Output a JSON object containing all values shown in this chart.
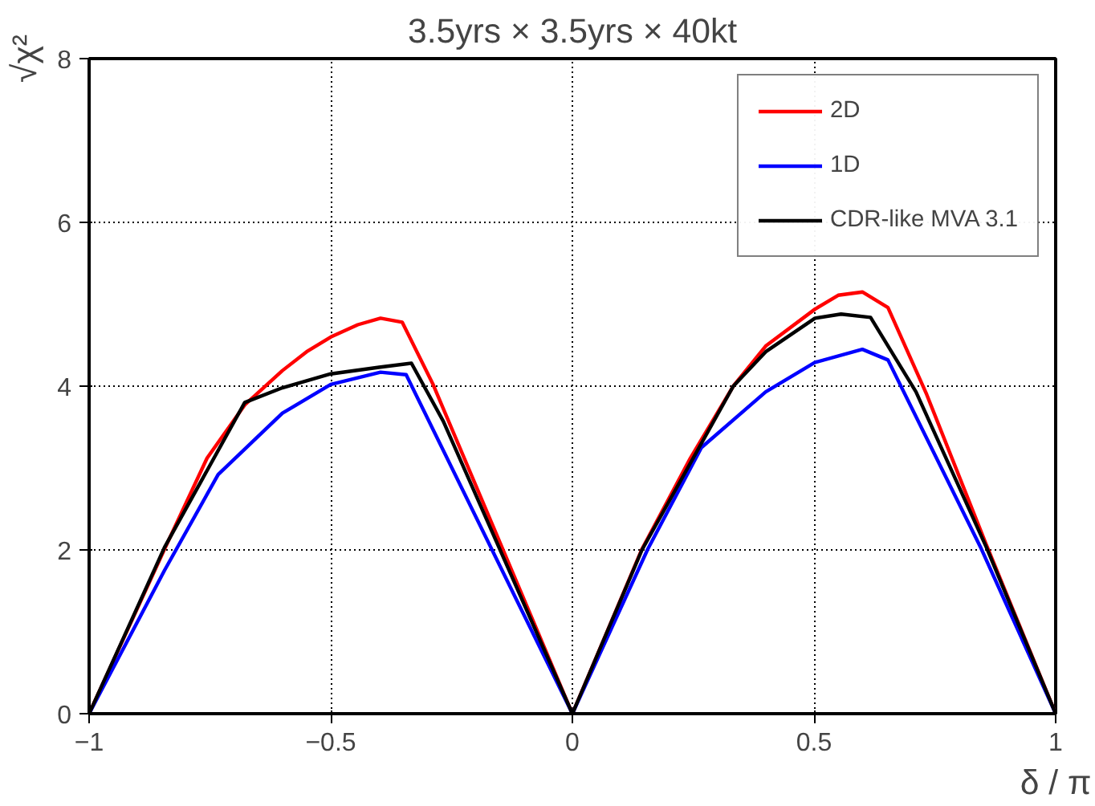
{
  "chart_data": {
    "type": "line",
    "title": "3.5yrs × 3.5yrs × 40kt",
    "xlabel": "δ / π",
    "ylabel": "√χ²",
    "xlim": [
      -1,
      1
    ],
    "ylim": [
      0,
      8
    ],
    "xticks": [
      -1,
      -0.5,
      0,
      0.5,
      1
    ],
    "yticks": [
      0,
      2,
      4,
      6,
      8
    ],
    "grid": true,
    "legend": "top right",
    "line_style": "solid",
    "marker": "none",
    "series": [
      {
        "name": "2D",
        "color": "#ff0000",
        "x": [
          -1,
          -0.844,
          -0.756,
          -0.678,
          -0.6,
          -0.55,
          -0.5,
          -0.444,
          -0.397,
          -0.352,
          -0.289,
          0,
          0.144,
          0.244,
          0.333,
          0.4,
          0.502,
          0.55,
          0.6,
          0.653,
          0.733,
          0.856,
          1
        ],
        "values": [
          0,
          2.01,
          3.12,
          3.77,
          4.19,
          4.42,
          4.6,
          4.75,
          4.83,
          4.78,
          4.03,
          0,
          2.01,
          3.12,
          4.0,
          4.49,
          4.94,
          5.11,
          5.15,
          4.96,
          3.9,
          2.07,
          0
        ]
      },
      {
        "name": "1D",
        "color": "#0000ff",
        "x": [
          -1,
          -0.844,
          -0.733,
          -0.6,
          -0.5,
          -0.397,
          -0.344,
          0,
          0.156,
          0.267,
          0.4,
          0.502,
          0.6,
          0.653,
          0.844,
          1
        ],
        "values": [
          0,
          1.75,
          2.92,
          3.67,
          4.02,
          4.17,
          4.14,
          0,
          2.01,
          3.25,
          3.93,
          4.29,
          4.45,
          4.32,
          2.04,
          0
        ]
      },
      {
        "name": "CDR-like MVA 3.1",
        "color": "#000000",
        "x": [
          -1,
          -0.844,
          -0.678,
          -0.6,
          -0.5,
          -0.4,
          -0.333,
          -0.267,
          0,
          0.144,
          0.333,
          0.4,
          0.502,
          0.556,
          0.617,
          0.711,
          0.856,
          1
        ],
        "values": [
          0,
          2.03,
          3.8,
          3.98,
          4.15,
          4.23,
          4.28,
          3.57,
          0,
          2.0,
          4.0,
          4.42,
          4.83,
          4.88,
          4.84,
          3.93,
          2.04,
          0
        ]
      }
    ]
  }
}
